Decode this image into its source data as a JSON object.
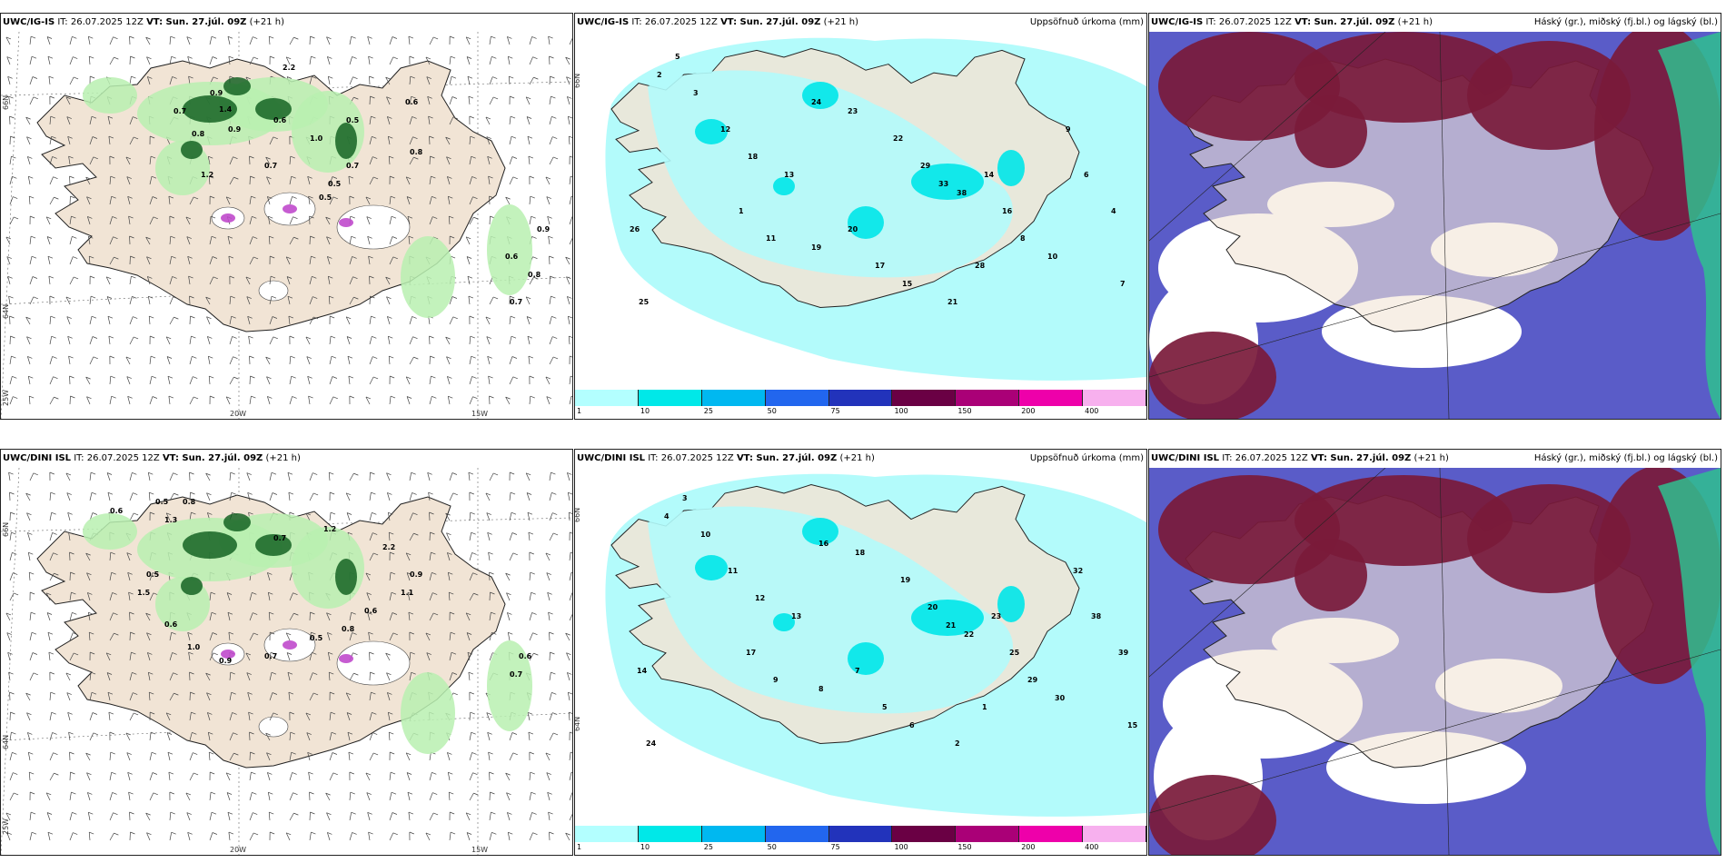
{
  "panels": [
    {
      "id": "p1",
      "model": "UWC/IG-IS",
      "it_label": "IT:",
      "it_value": "26.07.2025 12Z",
      "vt_label": "VT: Sun. 27.júl. 09Z",
      "lead": "(+21 h)",
      "right_title": "",
      "type": "wind",
      "numbers": [
        "2.2",
        "1.4",
        "0.7",
        "0.9",
        "0.6",
        "1.0",
        "0.5",
        "0.6",
        "0.8",
        "0.7",
        "0.5",
        "1.2",
        "0.9",
        "0.8",
        "0.7",
        "0.5",
        "0.9",
        "0.8",
        "0.7",
        "0.6"
      ]
    },
    {
      "id": "p2",
      "model": "UWC/IG-IS",
      "it_label": "IT:",
      "it_value": "26.07.2025 12Z",
      "vt_label": "VT: Sun. 27.júl. 09Z",
      "lead": "(+21 h)",
      "right_title": "Uppsöfnuð úrkoma (mm)",
      "type": "precip",
      "numbers": [
        "5",
        "2",
        "3",
        "12",
        "18",
        "13",
        "24",
        "23",
        "22",
        "29",
        "33",
        "38",
        "14",
        "16",
        "8",
        "10",
        "9",
        "6",
        "4",
        "7",
        "1",
        "11",
        "19",
        "20",
        "17",
        "15",
        "21",
        "28",
        "26",
        "25"
      ]
    },
    {
      "id": "p3",
      "model": "UWC/IG-IS",
      "it_label": "IT:",
      "it_value": "26.07.2025 12Z",
      "vt_label": "VT: Sun. 27.júl. 09Z",
      "lead": "(+21 h)",
      "right_title": "Háský (gr.), miðský (fj.bl.) og lágský (bl.)",
      "type": "cloud"
    },
    {
      "id": "p4",
      "model": "UWC/DINI ISL",
      "it_label": "IT:",
      "it_value": "26.07.2025 12Z",
      "vt_label": "VT: Sun. 27.júl. 09Z",
      "lead": "(+21 h)",
      "right_title": "",
      "type": "wind",
      "numbers": [
        "0.5",
        "0.8",
        "0.6",
        "1.3",
        "0.7",
        "1.2",
        "2.2",
        "0.9",
        "1.1",
        "0.6",
        "0.8",
        "0.5",
        "0.7",
        "0.9",
        "1.0",
        "0.6",
        "0.5",
        "1.5",
        "0.6",
        "0.7"
      ]
    },
    {
      "id": "p5",
      "model": "UWC/DINI ISL",
      "it_label": "IT:",
      "it_value": "26.07.2025 12Z",
      "vt_label": "VT: Sun. 27.júl. 09Z",
      "lead": "(+21 h)",
      "right_title": "Uppsöfnuð úrkoma (mm)",
      "type": "precip",
      "numbers": [
        "3",
        "4",
        "10",
        "11",
        "12",
        "13",
        "16",
        "18",
        "19",
        "20",
        "21",
        "22",
        "23",
        "25",
        "29",
        "30",
        "32",
        "38",
        "39",
        "15",
        "17",
        "9",
        "8",
        "7",
        "5",
        "6",
        "2",
        "1",
        "14",
        "24"
      ]
    },
    {
      "id": "p6",
      "model": "UWC/DINI ISL",
      "it_label": "IT:",
      "it_value": "26.07.2025 12Z",
      "vt_label": "VT: Sun. 27.júl. 09Z",
      "lead": "(+21 h)",
      "right_title": "Háský (gr.), miðský (fj.bl.) og lágský (bl.)",
      "type": "cloud"
    }
  ],
  "axis_labels": {
    "lat66": "66N",
    "lat64": "64N",
    "lon20": "20W",
    "lon15": "15W",
    "lon25": "25W"
  },
  "colorbar": {
    "ticks": [
      "1",
      "10",
      "25",
      "50",
      "75",
      "100",
      "150",
      "200",
      "400"
    ],
    "colors": [
      "#b3ffff",
      "#00e8e8",
      "#00b8f0",
      "#2266ee",
      "#2233bb",
      "#6a0044",
      "#aa0077",
      "#ee00aa",
      "#f7b0ee"
    ]
  },
  "colors": {
    "land": "#f1e4d5",
    "precip_light": "#b3fbfb",
    "precip_mid": "#00e5e8",
    "wind_green_light": "#b9f0b0",
    "wind_green_dark": "#0a5a1a",
    "cloud_high": "#7a1a3a",
    "cloud_mid": "#5a5cc8",
    "cloud_low": "#2fbf8f"
  }
}
